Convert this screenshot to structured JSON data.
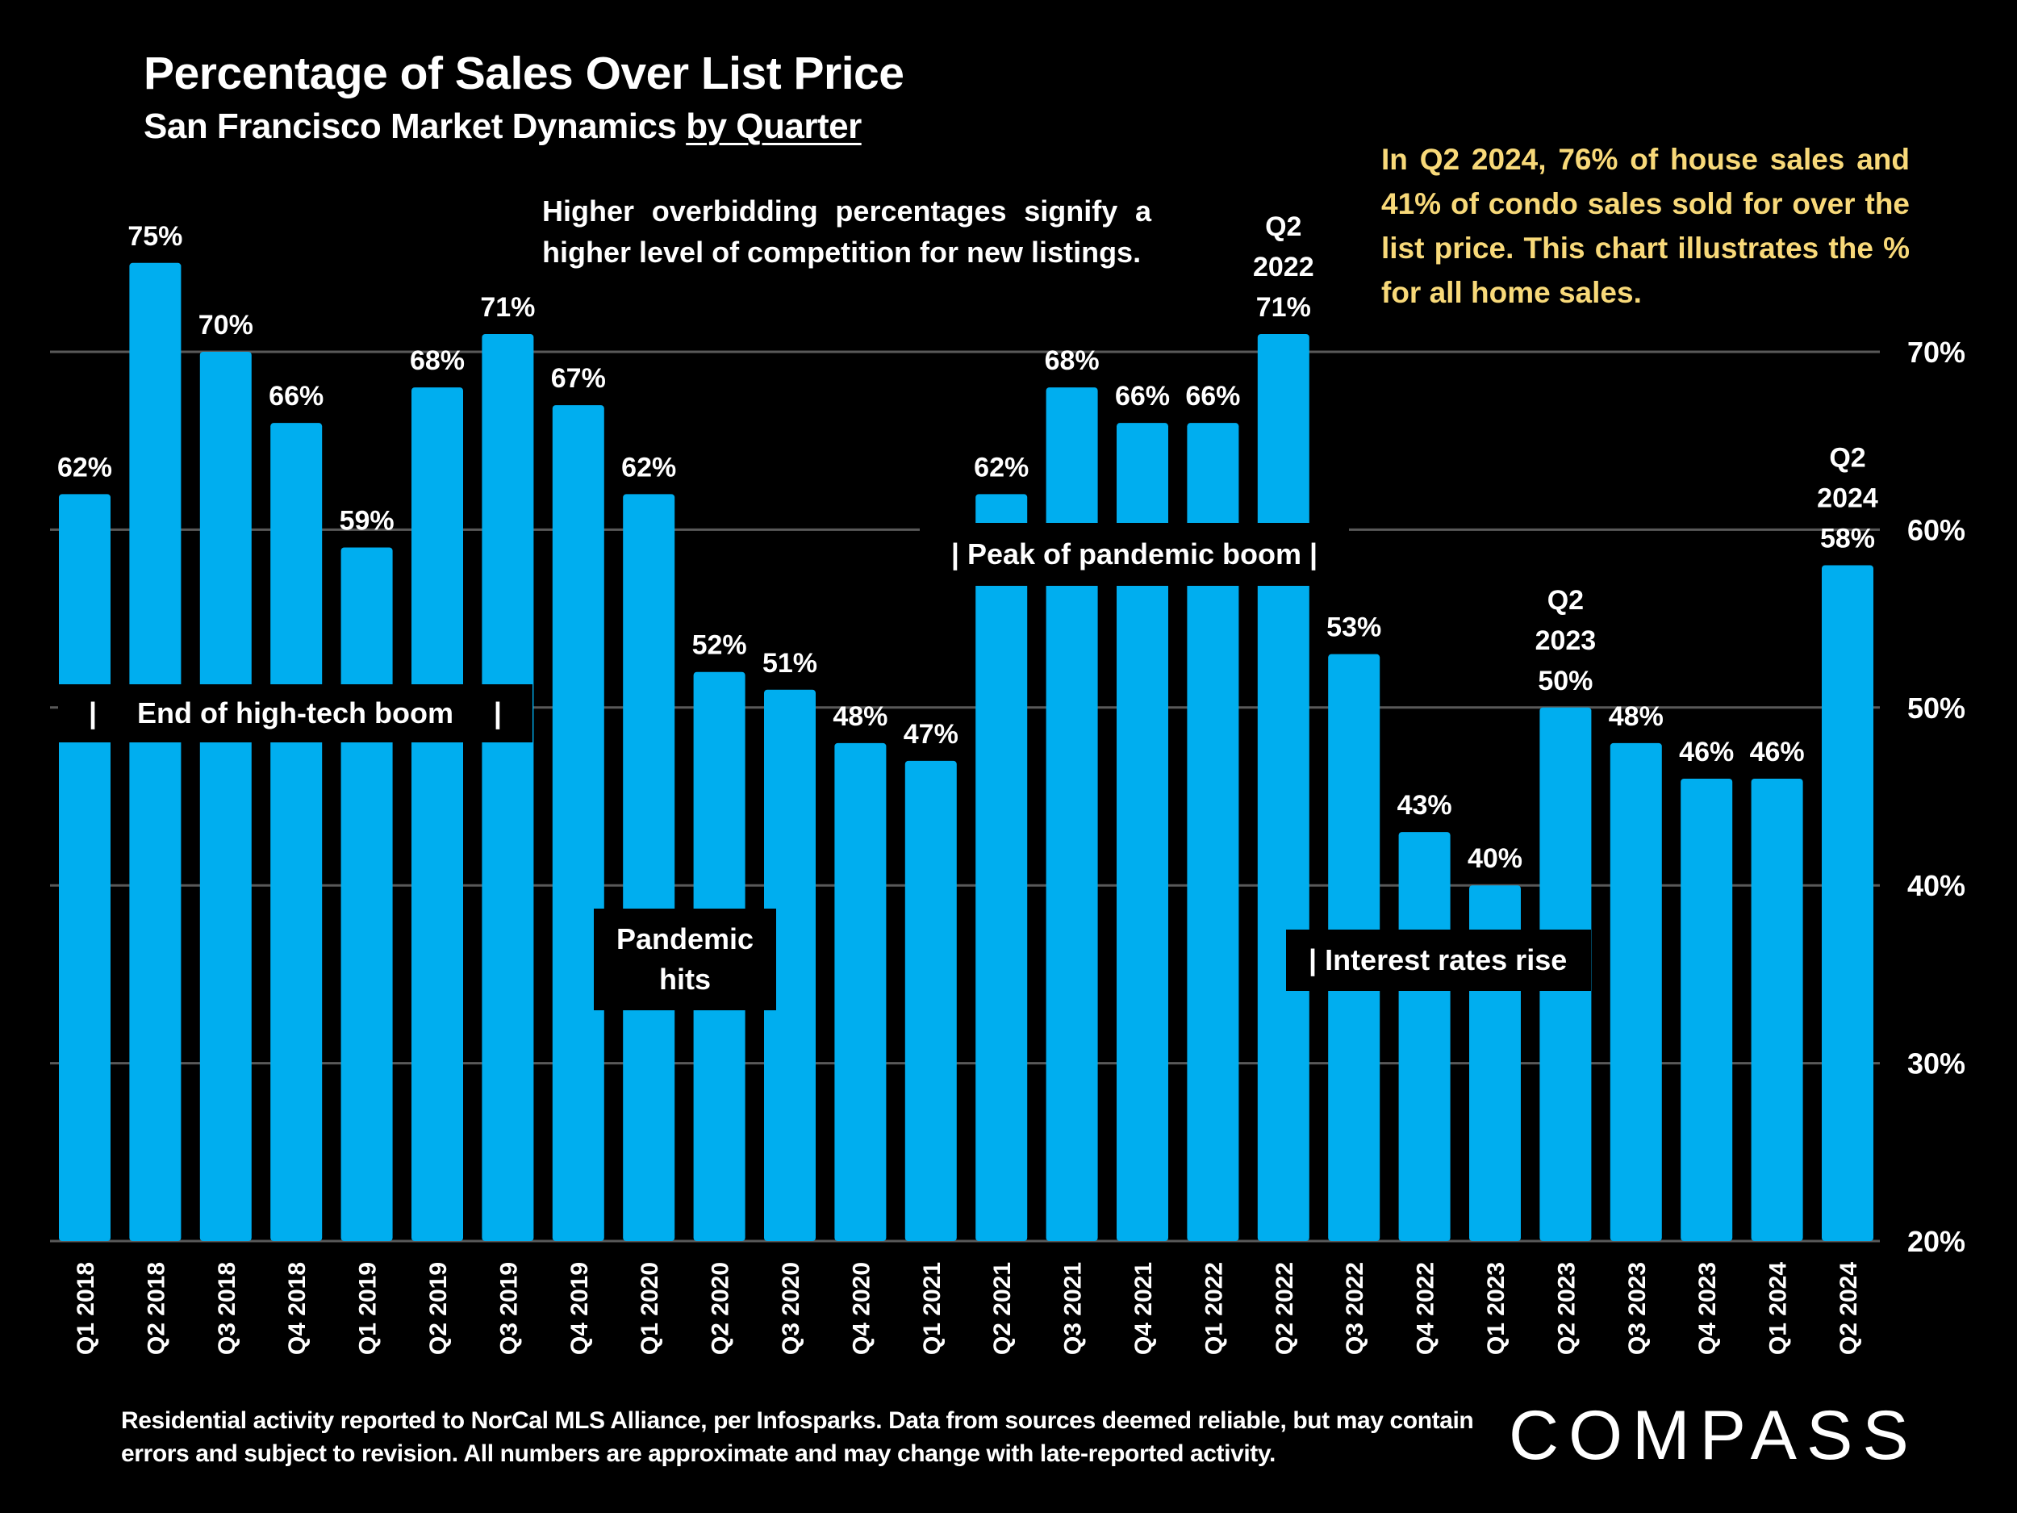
{
  "header": {
    "title": "Percentage of Sales Over List Price",
    "subtitle_plain": "San Francisco Market Dynamics ",
    "subtitle_underlined": "by Quarter"
  },
  "note": "Higher overbidding percentages signify a higher level of competition for new listings.",
  "callout": "In Q2 2024, 76% of house sales and 41% of condo sales sold for over the list price. This chart illustrates the % for all home sales.",
  "annotations": {
    "high_tech": {
      "bar_left": "|",
      "text": "End of high-tech boom",
      "bar_right": "|"
    },
    "pandemic_hits": {
      "line1": "Pandemic",
      "line2": "hits"
    },
    "pandemic_peak": "| Peak of pandemic boom |",
    "interest_rates": "| Interest rates rise"
  },
  "footnote": "Residential activity reported to NorCal MLS Alliance, per Infosparks. Data from sources deemed reliable, but may contain errors and subject to revision. All numbers are approximate and may change with late-reported activity.",
  "logo": "COMPASS",
  "colors": {
    "bar": "#00aeef",
    "background": "#000000",
    "text": "#ffffff",
    "callout": "#f8d979",
    "grid": "#595959"
  },
  "chart_data": {
    "type": "bar",
    "title": "Percentage of Sales Over List Price",
    "subtitle": "San Francisco Market Dynamics by Quarter",
    "xlabel": "",
    "ylabel": "",
    "y_axis_position": "right",
    "ylim": [
      20,
      70
    ],
    "yticks": [
      20,
      30,
      40,
      50,
      60,
      70
    ],
    "ytick_labels": [
      "20%",
      "30%",
      "40%",
      "50%",
      "60%",
      "70%"
    ],
    "grid": true,
    "categories": [
      "Q1 2018",
      "Q2 2018",
      "Q3 2018",
      "Q4 2018",
      "Q1 2019",
      "Q2 2019",
      "Q3 2019",
      "Q4 2019",
      "Q1 2020",
      "Q2 2020",
      "Q3 2020",
      "Q4 2020",
      "Q1 2021",
      "Q2 2021",
      "Q3 2021",
      "Q4 2021",
      "Q1 2022",
      "Q2 2022",
      "Q3 2022",
      "Q4 2022",
      "Q1 2023",
      "Q2 2023",
      "Q3 2023",
      "Q4 2023",
      "Q1 2024",
      "Q2 2024"
    ],
    "values": [
      62,
      75,
      70,
      66,
      59,
      68,
      71,
      67,
      62,
      52,
      51,
      48,
      47,
      62,
      68,
      66,
      66,
      71,
      53,
      43,
      40,
      50,
      48,
      46,
      46,
      58
    ],
    "data_labels": [
      "62%",
      "75%",
      "70%",
      "66%",
      "59%",
      "68%",
      "71%",
      "67%",
      "62%",
      "52%",
      "51%",
      "48%",
      "47%",
      "62%",
      "68%",
      "66%",
      "66%",
      "71%",
      "53%",
      "43%",
      "40%",
      "50%",
      "48%",
      "46%",
      "46%",
      "58%"
    ],
    "highlighted_labels": {
      "17": [
        "Q2",
        "2022"
      ],
      "21": [
        "Q2",
        "2023"
      ],
      "25": [
        "Q2",
        "2024"
      ]
    }
  }
}
